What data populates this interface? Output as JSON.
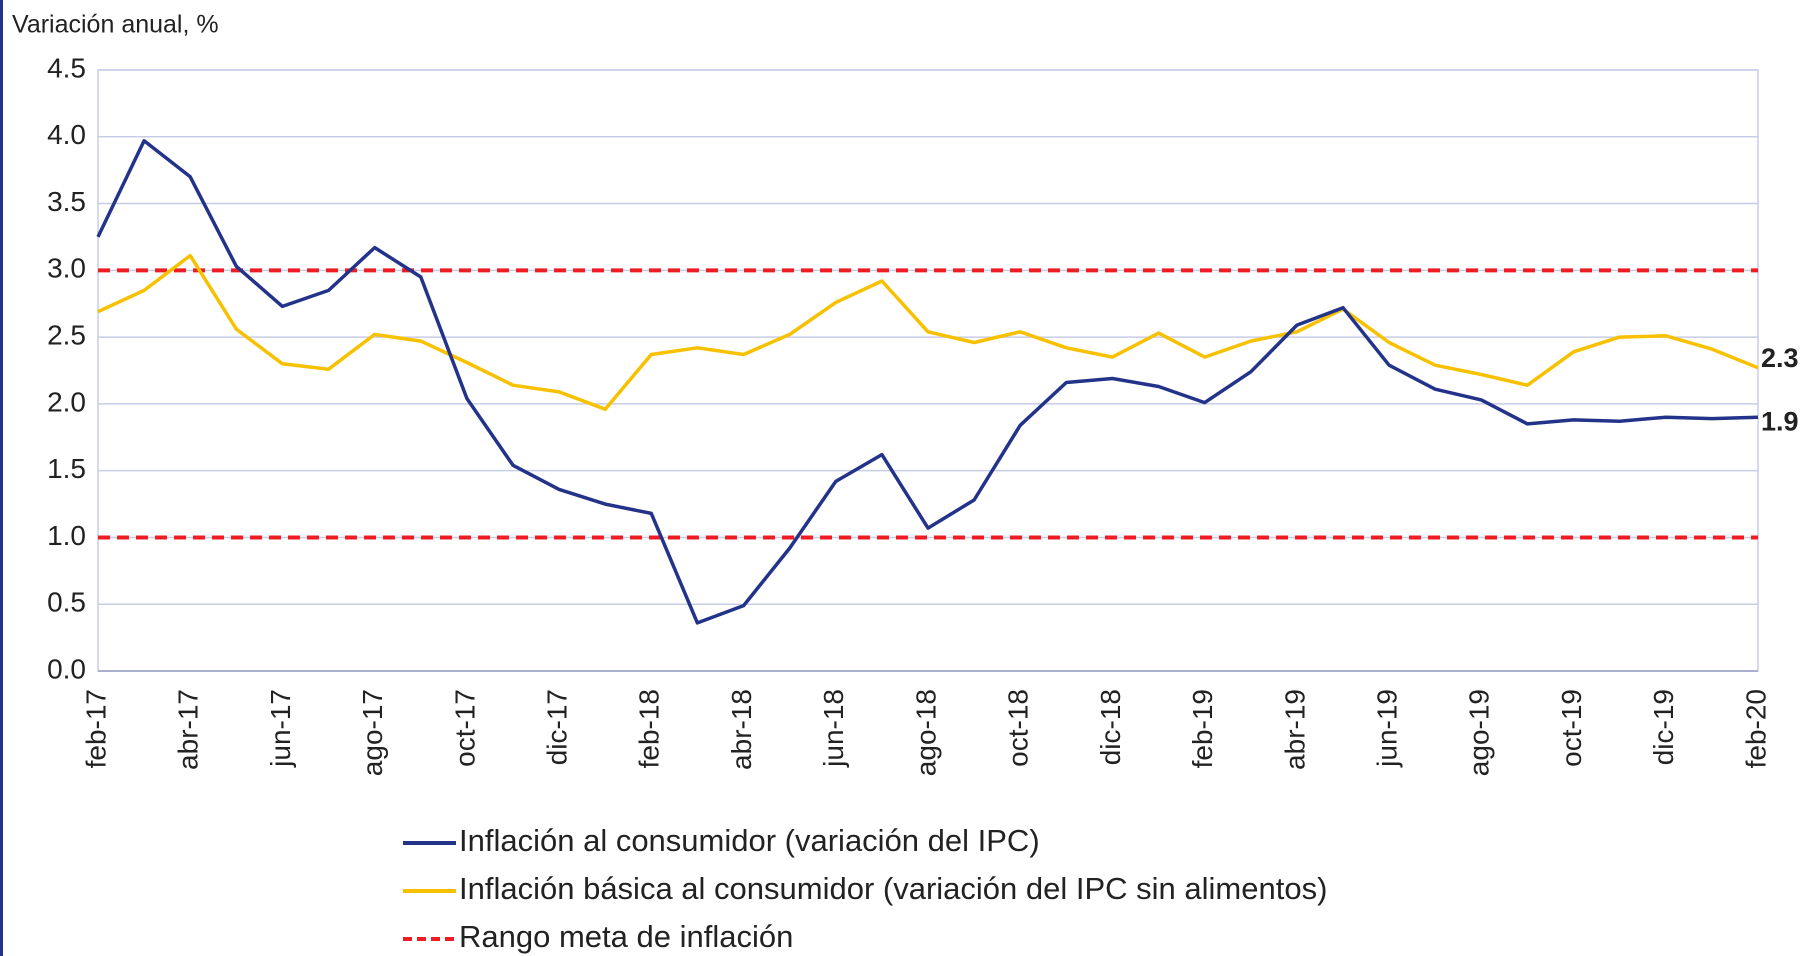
{
  "chart_data": {
    "type": "line",
    "y_axis_label": "Variación anual, %",
    "categories": [
      "feb-17",
      null,
      "abr-17",
      null,
      "jun-17",
      null,
      "ago-17",
      null,
      "oct-17",
      null,
      "dic-17",
      null,
      "feb-18",
      null,
      "abr-18",
      null,
      "jun-18",
      null,
      "ago-18",
      null,
      "oct-18",
      null,
      "dic-18",
      null,
      "feb-19",
      null,
      "abr-19",
      null,
      "jun-19",
      null,
      "ago-19",
      null,
      "oct-19",
      null,
      "dic-19",
      null,
      "feb-20"
    ],
    "series": [
      {
        "name": "Inflación al consumidor (variación del IPC)",
        "color": "#23338a",
        "values": [
          3.25,
          3.97,
          3.7,
          3.03,
          2.73,
          2.85,
          3.17,
          2.95,
          2.04,
          1.54,
          1.36,
          1.25,
          1.18,
          0.36,
          0.49,
          0.92,
          1.42,
          1.62,
          1.07,
          1.28,
          1.84,
          2.16,
          2.19,
          2.13,
          2.01,
          2.24,
          2.59,
          2.72,
          2.29,
          2.11,
          2.03,
          1.85,
          1.88,
          1.87,
          1.9,
          1.89,
          1.9
        ],
        "value_labels": [
          null,
          null,
          null,
          null,
          null,
          null,
          null,
          null,
          null,
          null,
          null,
          null,
          null,
          null,
          null,
          null,
          null,
          null,
          null,
          null,
          null,
          null,
          null,
          null,
          null,
          null,
          null,
          null,
          null,
          null,
          null,
          null,
          null,
          null,
          null,
          null,
          "1.9"
        ]
      },
      {
        "name": "Inflación básica al consumidor (variación del IPC sin alimentos)",
        "color": "#f8c100",
        "values": [
          2.69,
          2.85,
          3.11,
          2.56,
          2.3,
          2.26,
          2.52,
          2.47,
          2.31,
          2.14,
          2.09,
          1.96,
          2.37,
          2.42,
          2.37,
          2.52,
          2.76,
          2.92,
          2.54,
          2.46,
          2.54,
          2.42,
          2.35,
          2.53,
          2.35,
          2.47,
          2.54,
          2.71,
          2.46,
          2.29,
          2.22,
          2.14,
          2.39,
          2.5,
          2.51,
          2.41,
          2.27
        ],
        "value_labels": [
          null,
          null,
          null,
          null,
          null,
          null,
          null,
          null,
          null,
          null,
          null,
          null,
          null,
          null,
          null,
          null,
          null,
          null,
          null,
          null,
          null,
          null,
          null,
          null,
          null,
          null,
          null,
          null,
          null,
          null,
          null,
          null,
          null,
          null,
          null,
          null,
          "2.3"
        ]
      }
    ],
    "target_range": {
      "name": "Rango meta de inflación",
      "color": "#ee1c25",
      "values": [
        3,
        1
      ]
    },
    "ylim": [
      0,
      4.5
    ],
    "yticks": [
      {
        "value": 0,
        "label": "0.0"
      },
      0.5,
      {
        "value": 1,
        "label": "1.0"
      },
      1.5,
      {
        "value": 2,
        "label": "2.0"
      },
      2.5,
      {
        "value": 3,
        "label": "3.0"
      },
      3.5,
      {
        "value": 4,
        "label": "4.0"
      },
      4.5
    ],
    "grid": true
  }
}
